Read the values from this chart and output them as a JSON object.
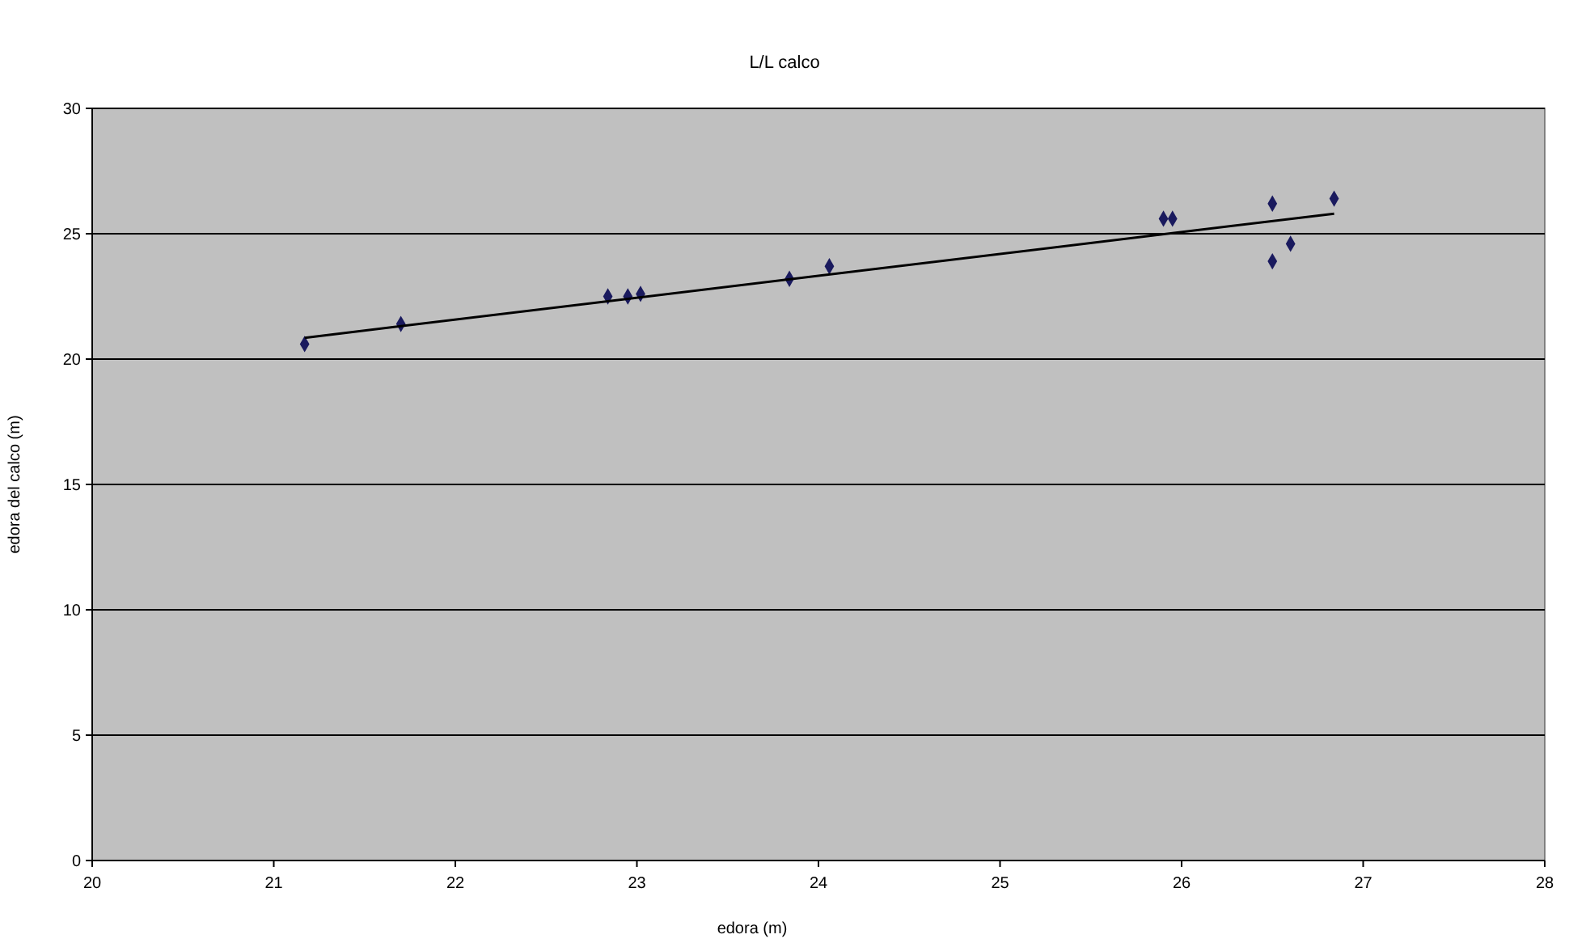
{
  "chart_data": {
    "type": "scatter",
    "title": "L/L calco",
    "xlabel": "edora (m)",
    "ylabel": "edora del calco (m)",
    "xlim": [
      20,
      28
    ],
    "xticks": [
      20,
      21,
      22,
      23,
      24,
      25,
      26,
      27,
      28
    ],
    "ylim": [
      0,
      30
    ],
    "yticks": [
      0,
      5,
      10,
      15,
      20,
      25,
      30
    ],
    "grid": "y",
    "series": [
      {
        "marker": "diamond",
        "color": "#1a1a5e",
        "x": [
          21.17,
          21.7,
          22.84,
          22.95,
          23.02,
          23.84,
          24.06,
          25.9,
          25.95,
          26.5,
          26.5,
          26.6,
          26.84
        ],
        "values": [
          20.6,
          21.4,
          22.5,
          22.5,
          22.6,
          23.2,
          23.7,
          25.6,
          25.6,
          26.2,
          23.9,
          24.6,
          26.4
        ]
      },
      {
        "type": "line",
        "color": "#000000",
        "x": [
          21.17,
          26.84
        ],
        "values": [
          20.85,
          25.8
        ]
      }
    ]
  }
}
